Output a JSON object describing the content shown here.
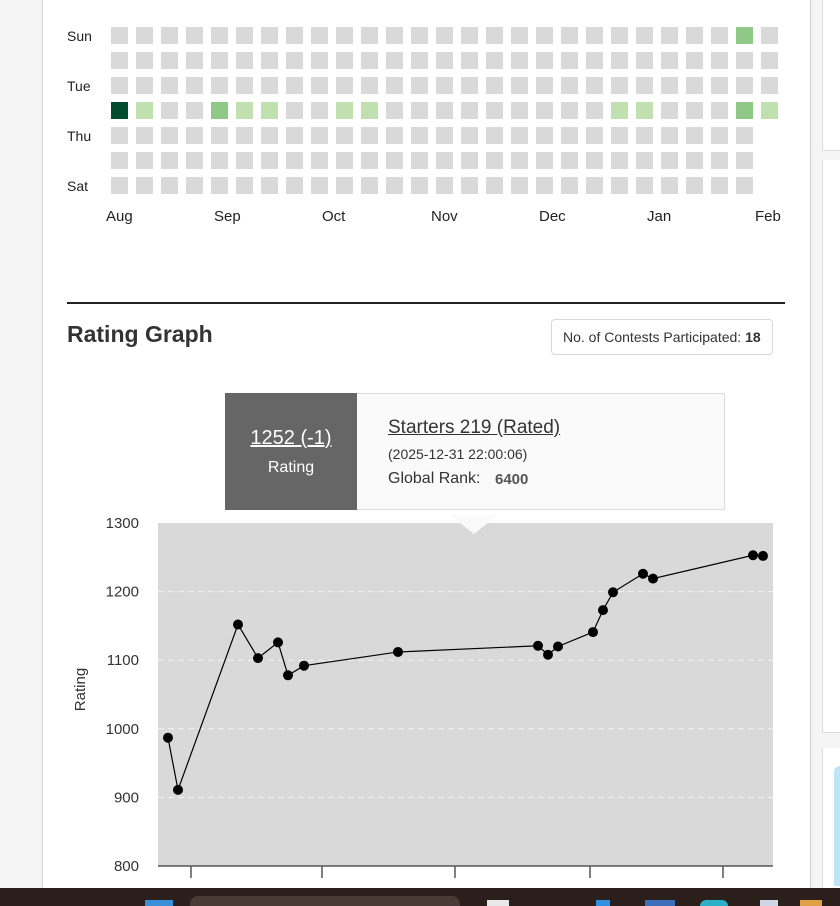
{
  "heatmap": {
    "day_labels": [
      "Sun",
      "Tue",
      "Thu",
      "Sat"
    ],
    "month_labels": [
      "Aug",
      "Sep",
      "Oct",
      "Nov",
      "Dec",
      "Jan",
      "Feb"
    ],
    "weeks": 27,
    "last_week_days": 4,
    "active_cells": [
      {
        "week": 0,
        "day": 3,
        "level": 4
      },
      {
        "week": 1,
        "day": 3,
        "level": 1
      },
      {
        "week": 4,
        "day": 3,
        "level": 2
      },
      {
        "week": 5,
        "day": 3,
        "level": 1
      },
      {
        "week": 6,
        "day": 3,
        "level": 1
      },
      {
        "week": 9,
        "day": 3,
        "level": 1
      },
      {
        "week": 10,
        "day": 3,
        "level": 1
      },
      {
        "week": 20,
        "day": 3,
        "level": 1
      },
      {
        "week": 21,
        "day": 3,
        "level": 1
      },
      {
        "week": 25,
        "day": 0,
        "level": 2
      },
      {
        "week": 25,
        "day": 3,
        "level": 2
      },
      {
        "week": 26,
        "day": 3,
        "level": 1
      }
    ],
    "colors": {
      "empty": "#d9d9d9",
      "level1": "#c0e0b0",
      "level2": "#8fc887",
      "level4": "#024b30"
    }
  },
  "rating_graph": {
    "title": "Rating Graph",
    "contests_label": "No. of Contests Participated:",
    "contests_count": "18"
  },
  "tooltip": {
    "rating": "1252 (-1)",
    "rating_label": "Rating",
    "contest": "Starters 219 (Rated)",
    "date": "(2025-12-31 22:00:06)",
    "rank_label": "Global Rank:",
    "rank_value": "6400"
  },
  "chart_data": {
    "type": "line",
    "ylabel": "Rating",
    "xlabel": "",
    "ylim": [
      800,
      1300
    ],
    "y_ticks": [
      800,
      900,
      1000,
      1100,
      1200,
      1300
    ],
    "grid": true,
    "x": [
      1,
      2,
      8,
      10,
      12,
      13,
      14.6,
      24,
      38,
      39,
      40,
      43.5,
      44.5,
      45.5,
      48.5,
      49.5,
      59.5,
      60.5
    ],
    "values": [
      987,
      911,
      1152,
      1103,
      1126,
      1078,
      1092,
      1112,
      1121,
      1108,
      1120,
      1141,
      1173,
      1199,
      1226,
      1219,
      1253,
      1252
    ],
    "colors": {
      "plot_bg": "#d9d9d9",
      "line": "#000000",
      "tooltip_dark": "#666666"
    }
  }
}
